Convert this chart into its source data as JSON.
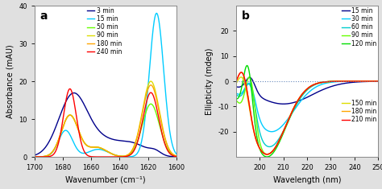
{
  "panel_a": {
    "title": "a",
    "xlabel": "Wavenumber (cm⁻¹)",
    "ylabel": "Absorbance (mAU)",
    "xlim": [
      1700,
      1600
    ],
    "ylim": [
      0,
      40
    ],
    "yticks": [
      0,
      10,
      20,
      30,
      40
    ],
    "xticks": [
      1700,
      1680,
      1660,
      1640,
      1620,
      1600
    ],
    "lines": [
      {
        "label": "3 min",
        "color": "#00008B"
      },
      {
        "label": "15 min",
        "color": "#00CCFF"
      },
      {
        "label": "50 min",
        "color": "#66FF00"
      },
      {
        "label": "90 min",
        "color": "#DDDD00"
      },
      {
        "label": "180 min",
        "color": "#FFA500"
      },
      {
        "label": "240 min",
        "color": "#FF0000"
      }
    ]
  },
  "panel_b": {
    "title": "b",
    "xlabel": "Wavelength (nm)",
    "ylabel": "Ellipticity (mdeg)",
    "xlim": [
      190,
      250
    ],
    "ylim": [
      -30,
      30
    ],
    "yticks": [
      -20,
      -10,
      0,
      10,
      20
    ],
    "xticks": [
      200,
      210,
      220,
      230,
      240,
      250
    ],
    "lines": [
      {
        "label": "15 min",
        "color": "#00008B"
      },
      {
        "label": "30 min",
        "color": "#00CCFF"
      },
      {
        "label": "60 min",
        "color": "#00CCCC"
      },
      {
        "label": "90 min",
        "color": "#66FF00"
      },
      {
        "label": "120 min",
        "color": "#00DD00"
      },
      {
        "label": "150 min",
        "color": "#DDDD00"
      },
      {
        "label": "180 min",
        "color": "#FFA500"
      },
      {
        "label": "210 min",
        "color": "#FF0000"
      }
    ]
  },
  "background_color": "#ffffff",
  "fig_background": "#e0e0e0"
}
